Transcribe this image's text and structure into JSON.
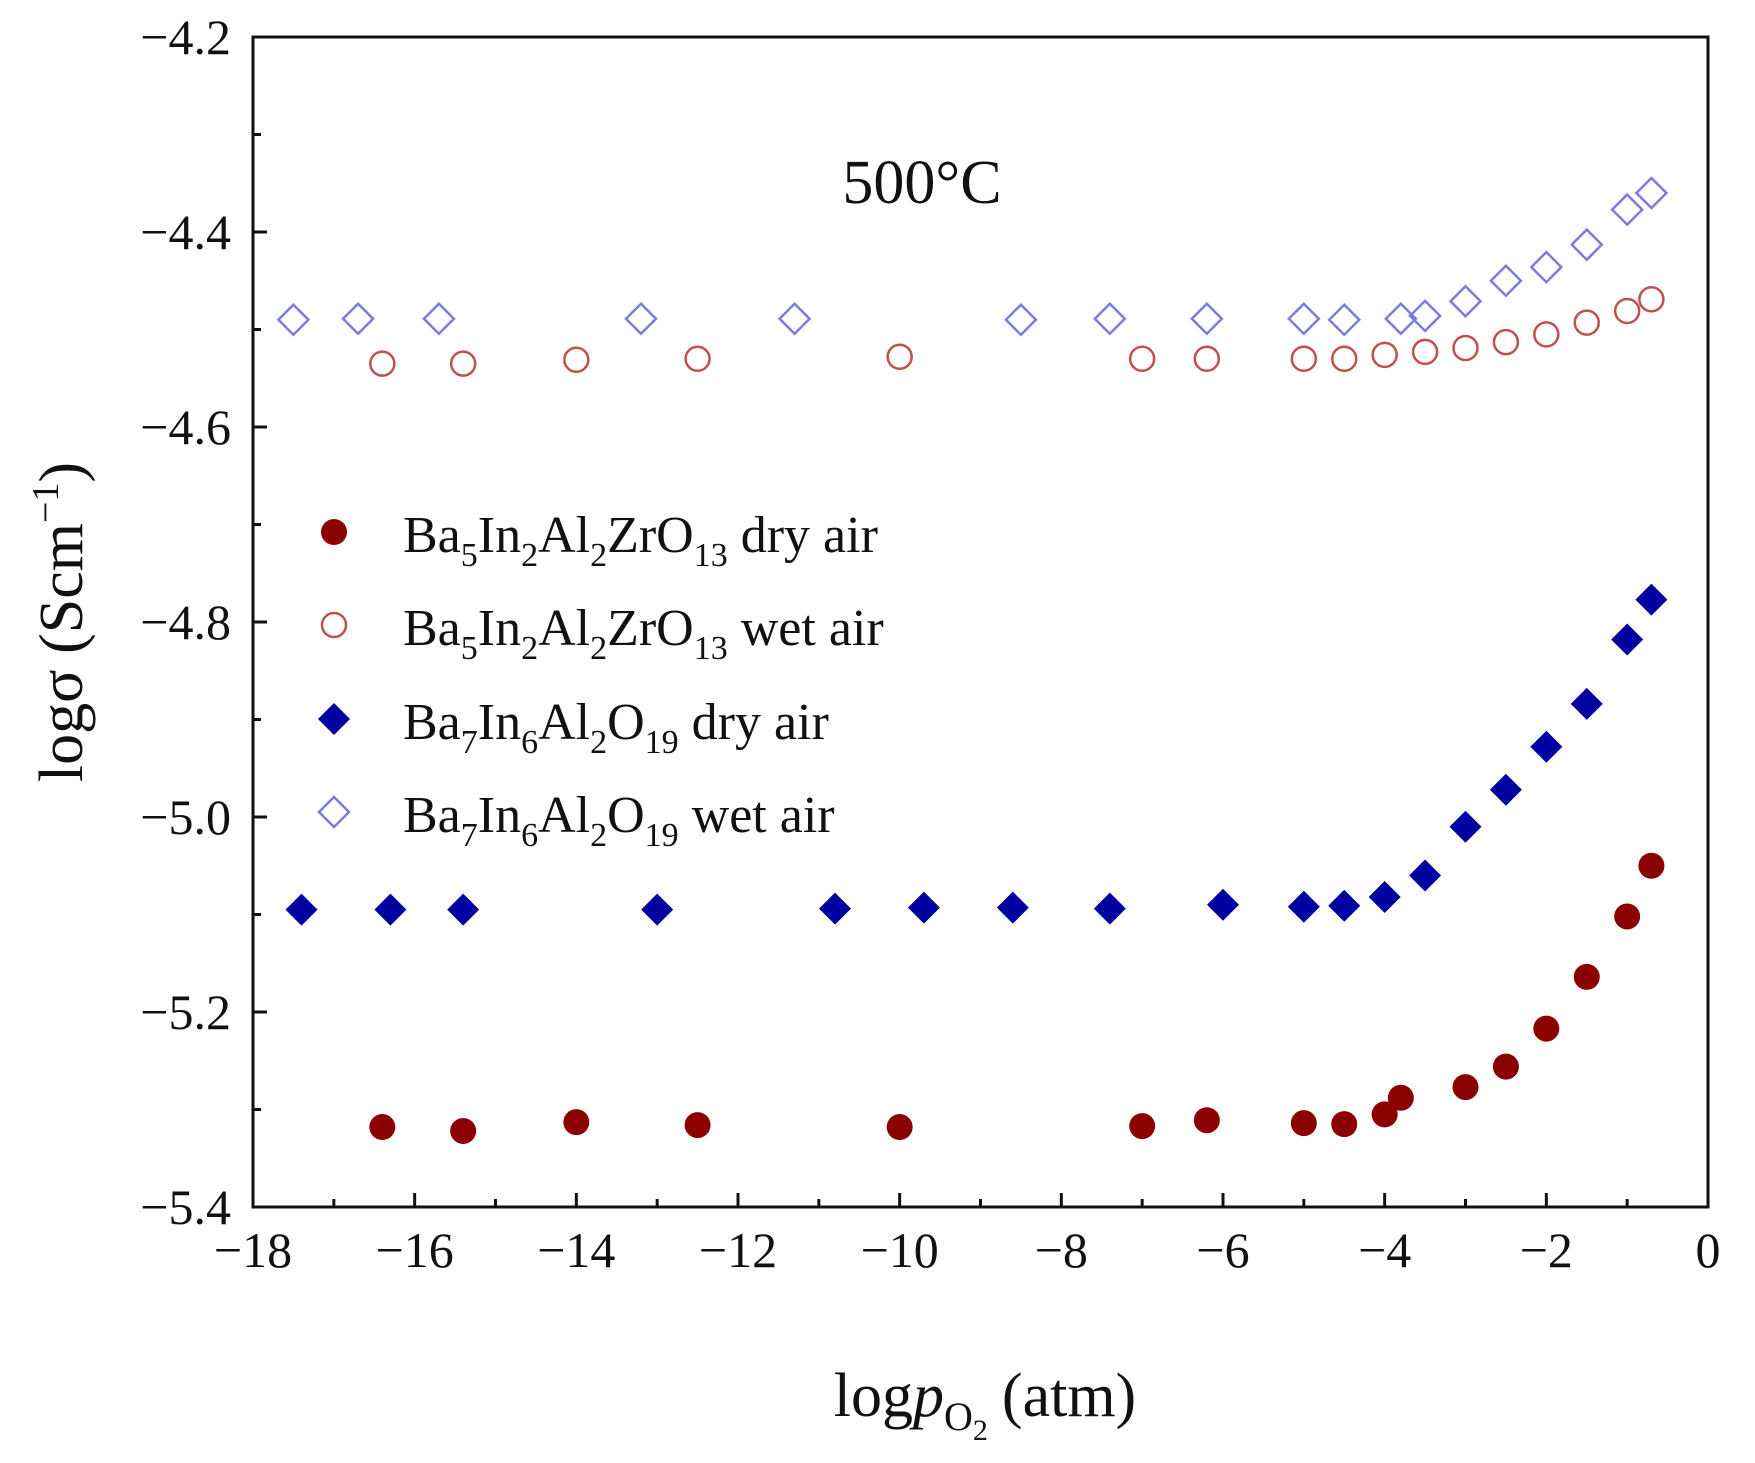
{
  "chart_data": {
    "type": "scatter",
    "annotation": "500°C",
    "xaxis": {
      "label_prefix": "log",
      "label_var": "p",
      "label_sub": "O",
      "label_subsub": "2",
      "label_unit": "(atm)",
      "range": [
        -18,
        0
      ],
      "ticks": [
        -18,
        -16,
        -14,
        -12,
        -10,
        -8,
        -6,
        -4,
        -2,
        0
      ],
      "tick_labels": [
        "−18",
        "−16",
        "−14",
        "−12",
        "−10",
        "−8",
        "−6",
        "−4",
        "−2",
        "0"
      ]
    },
    "yaxis": {
      "label_main": "logσ (Scm",
      "label_sup": "−1",
      "label_end": ")",
      "range": [
        -5.4,
        -4.2
      ],
      "ticks": [
        -5.4,
        -5.2,
        -5.0,
        -4.8,
        -4.6,
        -4.4,
        -4.2
      ],
      "tick_labels": [
        "−5.4",
        "−5.2",
        "−5.0",
        "−4.8",
        "−4.6",
        "−4.4",
        "−4.2"
      ]
    },
    "legend_position": "middle-left",
    "series": [
      {
        "name": "Ba5In2Al2ZrO13 dry air",
        "legend": [
          [
            "Ba",
            ""
          ],
          [
            "5",
            "sub"
          ],
          [
            "In",
            ""
          ],
          [
            "2",
            "sub"
          ],
          [
            "Al",
            ""
          ],
          [
            "2",
            "sub"
          ],
          [
            "ZrO",
            ""
          ],
          [
            "13",
            "sub"
          ],
          [
            " dry air",
            ""
          ]
        ],
        "marker": "circle",
        "filled": true,
        "color": "#8b0000",
        "x": [
          -16.4,
          -15.4,
          -14.0,
          -12.5,
          -10.0,
          -7.0,
          -6.2,
          -5.0,
          -4.5,
          -4.0,
          -3.8,
          -3.0,
          -2.5,
          -2.0,
          -1.5,
          -1.0,
          -0.7
        ],
        "y": [
          -5.318,
          -5.322,
          -5.313,
          -5.316,
          -5.318,
          -5.317,
          -5.311,
          -5.314,
          -5.315,
          -5.305,
          -5.288,
          -5.277,
          -5.256,
          -5.217,
          -5.164,
          -5.102,
          -5.05
        ]
      },
      {
        "name": "Ba5In2Al2ZrO13 wet air",
        "legend": [
          [
            "Ba",
            ""
          ],
          [
            "5",
            "sub"
          ],
          [
            "In",
            ""
          ],
          [
            "2",
            "sub"
          ],
          [
            "Al",
            ""
          ],
          [
            "2",
            "sub"
          ],
          [
            "ZrO",
            ""
          ],
          [
            "13",
            "sub"
          ],
          [
            " wet air",
            ""
          ]
        ],
        "marker": "circle",
        "filled": false,
        "color": "#c0504d",
        "x": [
          -16.4,
          -15.4,
          -14.0,
          -12.5,
          -10.0,
          -7.0,
          -6.2,
          -5.0,
          -4.5,
          -4.0,
          -3.5,
          -3.0,
          -2.5,
          -2.0,
          -1.5,
          -1.0,
          -0.7
        ],
        "y": [
          -4.535,
          -4.535,
          -4.531,
          -4.53,
          -4.528,
          -4.53,
          -4.53,
          -4.53,
          -4.53,
          -4.526,
          -4.523,
          -4.519,
          -4.513,
          -4.505,
          -4.493,
          -4.481,
          -4.469
        ]
      },
      {
        "name": "Ba7In6Al2O19 dry air",
        "legend": [
          [
            "Ba",
            ""
          ],
          [
            "7",
            "sub"
          ],
          [
            "In",
            ""
          ],
          [
            "6",
            "sub"
          ],
          [
            "Al",
            ""
          ],
          [
            "2",
            "sub"
          ],
          [
            "O",
            ""
          ],
          [
            "19",
            "sub"
          ],
          [
            " dry air",
            ""
          ]
        ],
        "marker": "diamond",
        "filled": true,
        "color": "#0000a0",
        "x": [
          -17.4,
          -16.3,
          -15.4,
          -13.0,
          -10.8,
          -9.7,
          -8.6,
          -7.4,
          -6.0,
          -5.0,
          -4.5,
          -4.0,
          -3.5,
          -3.0,
          -2.5,
          -2.0,
          -1.5,
          -1.0,
          -0.7
        ],
        "y": [
          -5.095,
          -5.095,
          -5.095,
          -5.095,
          -5.094,
          -5.093,
          -5.093,
          -5.094,
          -5.09,
          -5.092,
          -5.091,
          -5.082,
          -5.06,
          -5.01,
          -4.972,
          -4.928,
          -4.884,
          -4.818,
          -4.777
        ]
      },
      {
        "name": "Ba7In6Al2O19 wet air",
        "legend": [
          [
            "Ba",
            ""
          ],
          [
            "7",
            "sub"
          ],
          [
            "In",
            ""
          ],
          [
            "6",
            "sub"
          ],
          [
            "Al",
            ""
          ],
          [
            "2",
            "sub"
          ],
          [
            "O",
            ""
          ],
          [
            "19",
            "sub"
          ],
          [
            " wet air",
            ""
          ]
        ],
        "marker": "diamond",
        "filled": false,
        "color": "#7b7be0",
        "x": [
          -17.5,
          -16.7,
          -15.7,
          -13.2,
          -11.3,
          -8.5,
          -7.4,
          -6.2,
          -5.0,
          -4.5,
          -3.8,
          -3.5,
          -3.0,
          -2.5,
          -2.0,
          -1.5,
          -1.0,
          -0.7
        ],
        "y": [
          -4.49,
          -4.489,
          -4.489,
          -4.489,
          -4.489,
          -4.49,
          -4.489,
          -4.489,
          -4.489,
          -4.49,
          -4.489,
          -4.486,
          -4.471,
          -4.45,
          -4.436,
          -4.413,
          -4.377,
          -4.36
        ]
      }
    ]
  }
}
